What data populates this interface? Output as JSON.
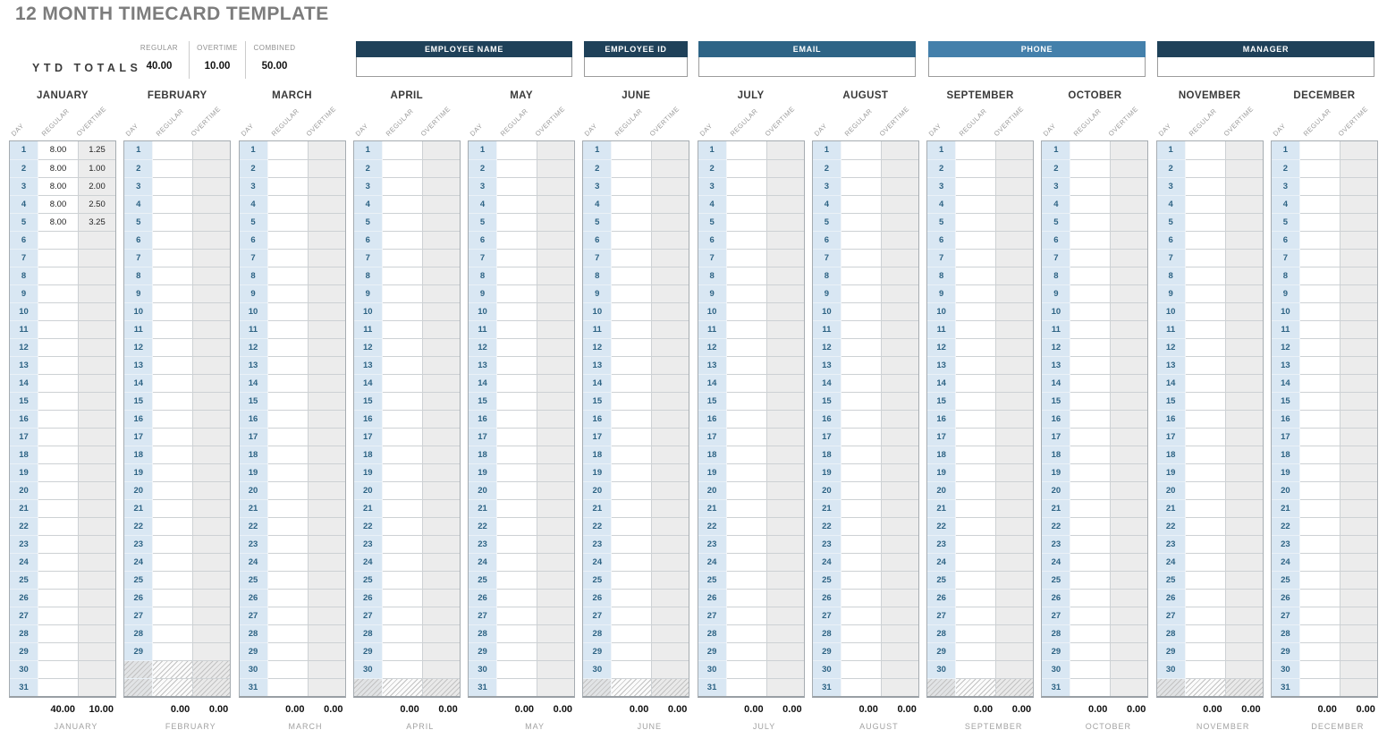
{
  "title": "12 MONTH TIMECARD TEMPLATE",
  "ytd": {
    "label": "YTD TOTALS",
    "columns": [
      {
        "label": "REGULAR",
        "value": "40.00"
      },
      {
        "label": "OVERTIME",
        "value": "10.00"
      },
      {
        "label": "COMBINED",
        "value": "50.00"
      }
    ]
  },
  "fields": [
    {
      "label": "EMPLOYEE NAME",
      "value": "",
      "color": "#1f4159"
    },
    {
      "label": "EMPLOYEE ID",
      "value": "",
      "color": "#1f4159"
    },
    {
      "label": "EMAIL",
      "value": "",
      "color": "#2e6486"
    },
    {
      "label": "PHONE",
      "value": "",
      "color": "#4480ab"
    },
    {
      "label": "MANAGER",
      "value": "",
      "color": "#1f4159"
    }
  ],
  "table": {
    "column_headers": [
      "DAY",
      "REGULAR",
      "OVERTIME"
    ],
    "max_rows": 31
  },
  "months": [
    {
      "name": "JANUARY",
      "days": 31,
      "entries": {
        "1": [
          "8.00",
          "1.25"
        ],
        "2": [
          "8.00",
          "1.00"
        ],
        "3": [
          "8.00",
          "2.00"
        ],
        "4": [
          "8.00",
          "2.50"
        ],
        "5": [
          "8.00",
          "3.25"
        ]
      },
      "totals": [
        "40.00",
        "10.00"
      ]
    },
    {
      "name": "FEBRUARY",
      "days": 29,
      "entries": {},
      "totals": [
        "0.00",
        "0.00"
      ]
    },
    {
      "name": "MARCH",
      "days": 31,
      "entries": {},
      "totals": [
        "0.00",
        "0.00"
      ]
    },
    {
      "name": "APRIL",
      "days": 30,
      "entries": {},
      "totals": [
        "0.00",
        "0.00"
      ]
    },
    {
      "name": "MAY",
      "days": 31,
      "entries": {},
      "totals": [
        "0.00",
        "0.00"
      ]
    },
    {
      "name": "JUNE",
      "days": 30,
      "entries": {},
      "totals": [
        "0.00",
        "0.00"
      ]
    },
    {
      "name": "JULY",
      "days": 31,
      "entries": {},
      "totals": [
        "0.00",
        "0.00"
      ]
    },
    {
      "name": "AUGUST",
      "days": 31,
      "entries": {},
      "totals": [
        "0.00",
        "0.00"
      ]
    },
    {
      "name": "SEPTEMBER",
      "days": 30,
      "entries": {},
      "totals": [
        "0.00",
        "0.00"
      ]
    },
    {
      "name": "OCTOBER",
      "days": 31,
      "entries": {},
      "totals": [
        "0.00",
        "0.00"
      ]
    },
    {
      "name": "NOVEMBER",
      "days": 30,
      "entries": {},
      "totals": [
        "0.00",
        "0.00"
      ]
    },
    {
      "name": "DECEMBER",
      "days": 31,
      "entries": {},
      "totals": [
        "0.00",
        "0.00"
      ]
    }
  ],
  "colors": {
    "title_text": "#7c7c7c",
    "header_dark": "#1f4159",
    "header_steel_blue": "#2e6486",
    "header_light_blue": "#4480ab",
    "day_cell_bg": "#d9e7f3",
    "day_number_text": "#2d6384",
    "overtime_col_bg": "#ececec"
  }
}
